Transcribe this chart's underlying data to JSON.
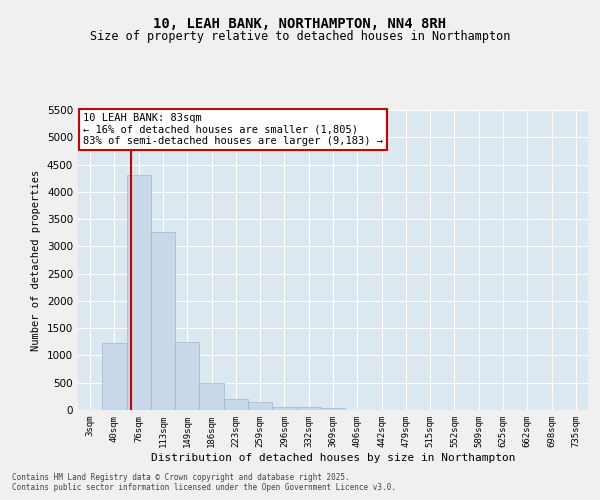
{
  "title1": "10, LEAH BANK, NORTHAMPTON, NN4 8RH",
  "title2": "Size of property relative to detached houses in Northampton",
  "xlabel": "Distribution of detached houses by size in Northampton",
  "ylabel": "Number of detached properties",
  "categories": [
    "3sqm",
    "40sqm",
    "76sqm",
    "113sqm",
    "149sqm",
    "186sqm",
    "223sqm",
    "259sqm",
    "296sqm",
    "332sqm",
    "369sqm",
    "406sqm",
    "442sqm",
    "479sqm",
    "515sqm",
    "552sqm",
    "589sqm",
    "625sqm",
    "662sqm",
    "698sqm",
    "735sqm"
  ],
  "bar_values": [
    0,
    1220,
    4300,
    3260,
    1240,
    490,
    200,
    155,
    50,
    50,
    40,
    0,
    0,
    0,
    0,
    0,
    0,
    0,
    0,
    0,
    0
  ],
  "bar_color": "#c8d8e8",
  "bar_edge_color": "#a0b8d0",
  "vline_color": "#cc0000",
  "ylim": [
    0,
    5500
  ],
  "yticks": [
    0,
    500,
    1000,
    1500,
    2000,
    2500,
    3000,
    3500,
    4000,
    4500,
    5000,
    5500
  ],
  "annotation_text": "10 LEAH BANK: 83sqm\n← 16% of detached houses are smaller (1,805)\n83% of semi-detached houses are larger (9,183) →",
  "annotation_box_color": "#ffffff",
  "annotation_box_edge_color": "#cc0000",
  "plot_bg_color": "#dce8f0",
  "fig_bg_color": "#f0f0f0",
  "grid_color": "#ffffff",
  "footer1": "Contains HM Land Registry data © Crown copyright and database right 2025.",
  "footer2": "Contains public sector information licensed under the Open Government Licence v3.0."
}
